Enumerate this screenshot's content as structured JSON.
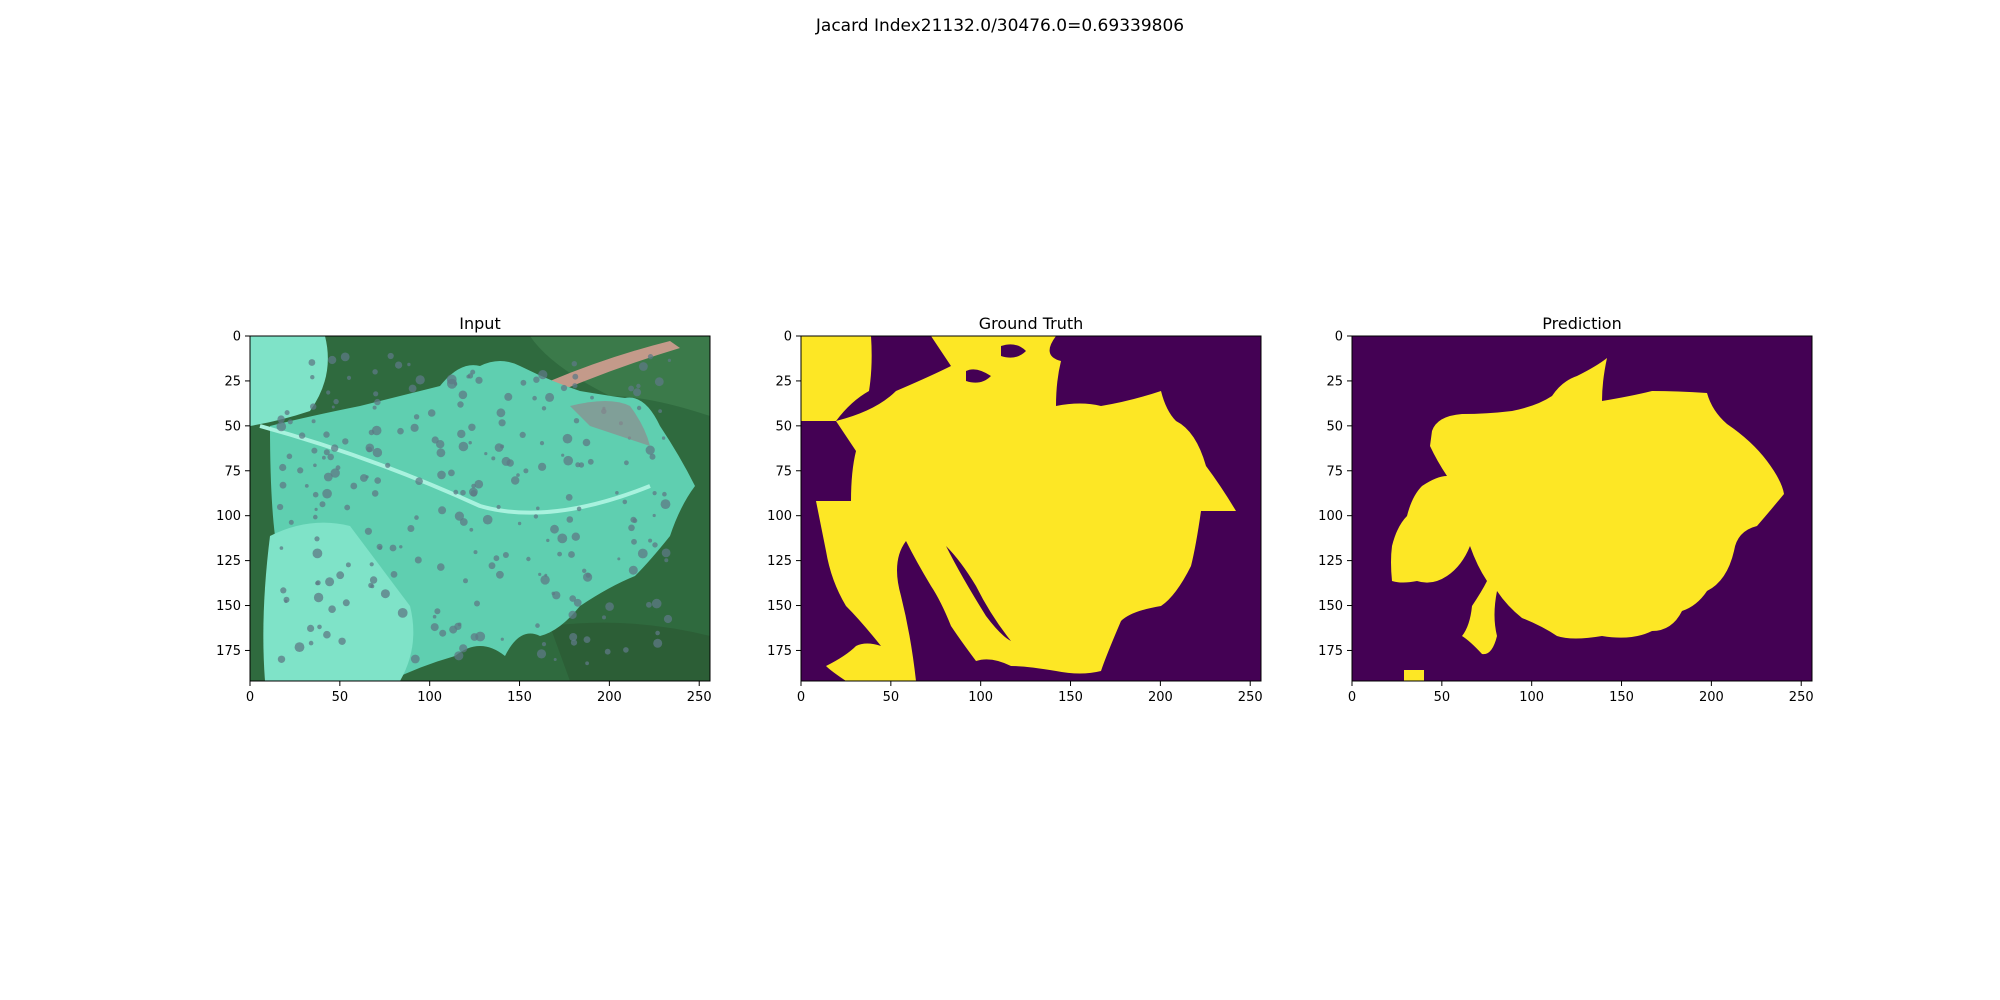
{
  "figure": {
    "suptitle": "Jacard Index21132.0/30476.0=0.69339806"
  },
  "panels": [
    {
      "title": "Input",
      "kind": "photo"
    },
    {
      "title": "Ground Truth",
      "kind": "mask"
    },
    {
      "title": "Prediction",
      "kind": "mask"
    }
  ],
  "axes": {
    "x_ticks": [
      "0",
      "50",
      "100",
      "150",
      "200",
      "250"
    ],
    "y_ticks": [
      "0",
      "25",
      "50",
      "75",
      "100",
      "125",
      "150",
      "175"
    ],
    "x_range": [
      0,
      256
    ],
    "y_range": [
      0,
      192
    ]
  },
  "colors": {
    "mask_background": "#440154",
    "mask_foreground": "#fde725",
    "leaf_light": "#7fe3c8",
    "leaf_mid": "#5fcfb0",
    "foliage_dark": "#2f6a3e",
    "spots": "#5e7a86"
  }
}
